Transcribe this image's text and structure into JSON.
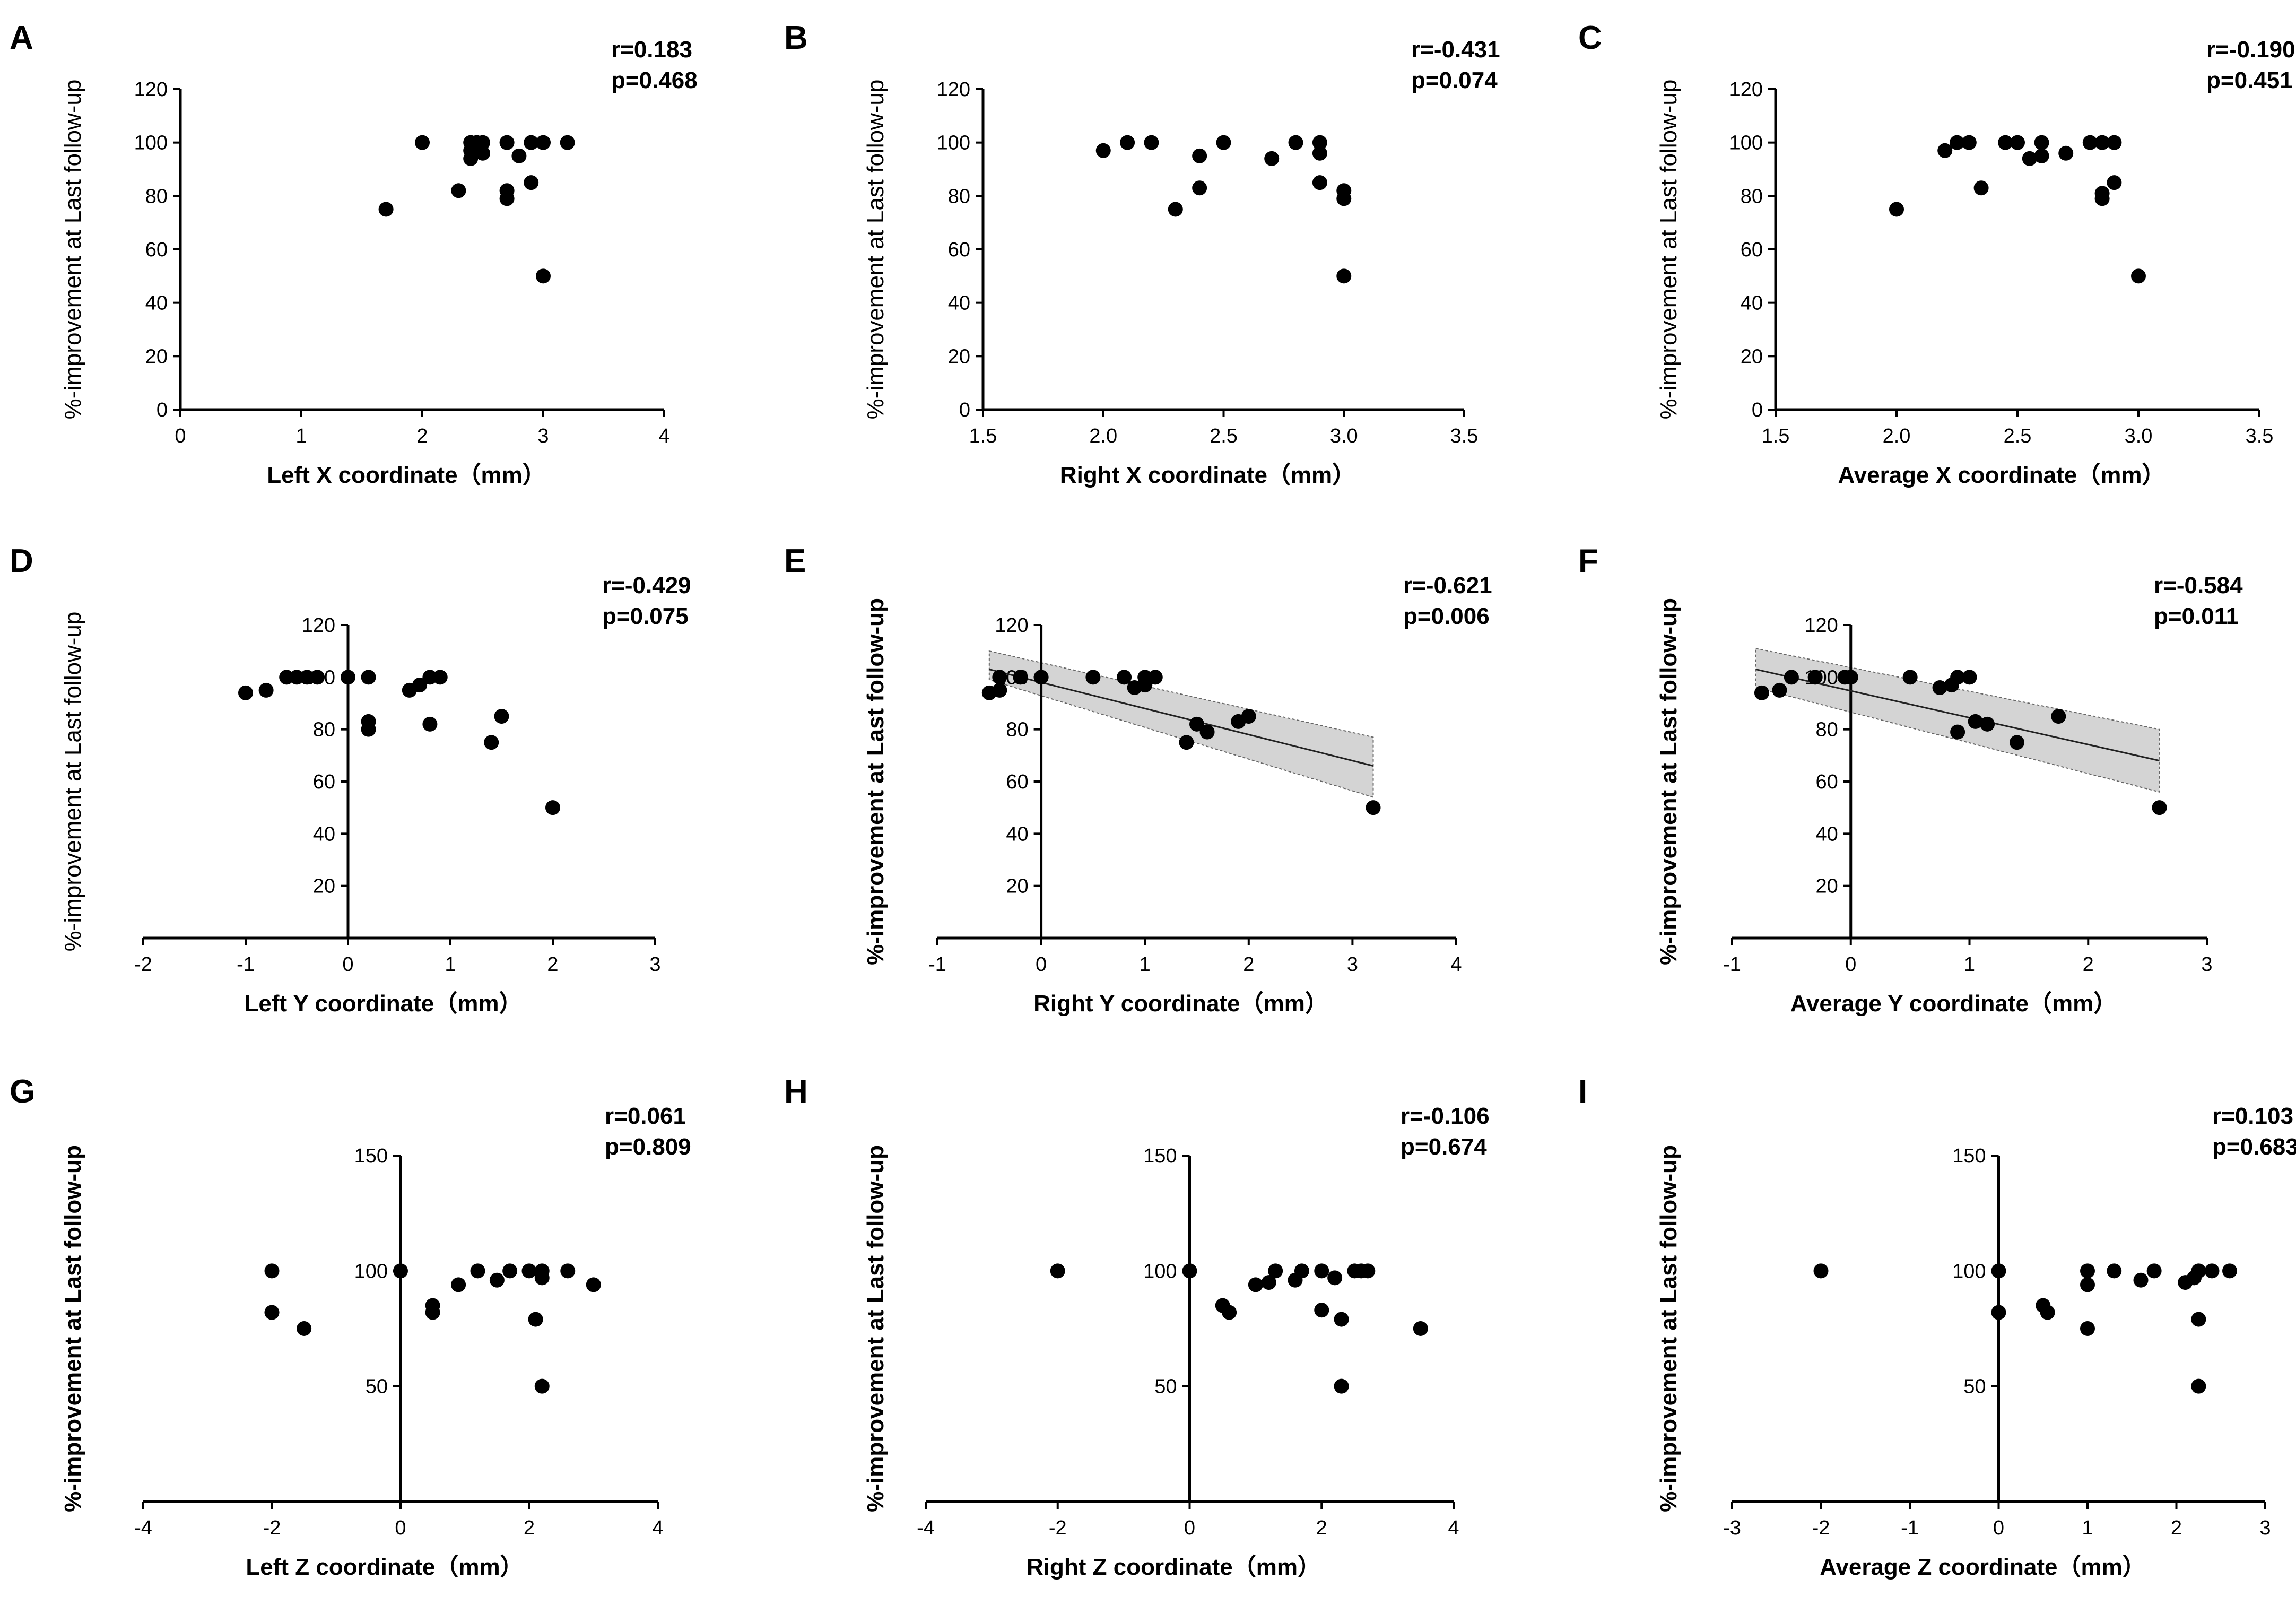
{
  "chart_data": [
    {
      "letter": "A",
      "type": "scatter",
      "xlabel": "Left X coordinate（mm）",
      "ylabel": "%-improvement at Last follow-up",
      "r": "r=0.183",
      "p": "p=0.468",
      "xlim": [
        0,
        4
      ],
      "ylim": [
        0,
        120
      ],
      "xticks": [
        "0",
        "1",
        "2",
        "3",
        "4"
      ],
      "yticks": [
        "0",
        "20",
        "40",
        "60",
        "80",
        "100",
        "120"
      ],
      "points": [
        [
          1.7,
          75
        ],
        [
          2.0,
          100
        ],
        [
          2.3,
          82
        ],
        [
          2.4,
          100
        ],
        [
          2.4,
          97
        ],
        [
          2.4,
          94
        ],
        [
          2.45,
          100
        ],
        [
          2.5,
          100
        ],
        [
          2.5,
          96
        ],
        [
          2.7,
          100
        ],
        [
          2.7,
          82
        ],
        [
          2.7,
          79
        ],
        [
          2.8,
          95
        ],
        [
          2.9,
          100
        ],
        [
          2.9,
          85
        ],
        [
          3.0,
          100
        ],
        [
          3.0,
          50
        ],
        [
          3.2,
          100
        ]
      ]
    },
    {
      "letter": "B",
      "type": "scatter",
      "xlabel": "Right X coordinate（mm）",
      "ylabel": "%-improvement at Last follow-up",
      "r": "r=-0.431",
      "p": "p=0.074",
      "xlim": [
        1.5,
        3.5
      ],
      "ylim": [
        0,
        120
      ],
      "xticks": [
        "1.5",
        "2.0",
        "2.5",
        "3.0",
        "3.5"
      ],
      "yticks": [
        "0",
        "20",
        "40",
        "60",
        "80",
        "100",
        "120"
      ],
      "points": [
        [
          2.0,
          97
        ],
        [
          2.1,
          100
        ],
        [
          2.2,
          100
        ],
        [
          2.3,
          75
        ],
        [
          2.4,
          95
        ],
        [
          2.4,
          83
        ],
        [
          2.5,
          100
        ],
        [
          2.7,
          94
        ],
        [
          2.8,
          100
        ],
        [
          2.9,
          100
        ],
        [
          2.9,
          96
        ],
        [
          2.9,
          85
        ],
        [
          3.0,
          82
        ],
        [
          3.0,
          79
        ],
        [
          3.0,
          50
        ]
      ]
    },
    {
      "letter": "C",
      "type": "scatter",
      "xlabel": "Average X coordinate（mm）",
      "ylabel": "%-improvement at Last follow-up",
      "r": "r=-0.190",
      "p": "p=0.451",
      "xlim": [
        1.5,
        3.5
      ],
      "ylim": [
        0,
        120
      ],
      "xticks": [
        "1.5",
        "2.0",
        "2.5",
        "3.0",
        "3.5"
      ],
      "yticks": [
        "0",
        "20",
        "40",
        "60",
        "80",
        "100",
        "120"
      ],
      "points": [
        [
          2.0,
          75
        ],
        [
          2.2,
          97
        ],
        [
          2.25,
          100
        ],
        [
          2.3,
          100
        ],
        [
          2.35,
          83
        ],
        [
          2.45,
          100
        ],
        [
          2.5,
          100
        ],
        [
          2.55,
          94
        ],
        [
          2.6,
          100
        ],
        [
          2.6,
          95
        ],
        [
          2.7,
          96
        ],
        [
          2.8,
          100
        ],
        [
          2.85,
          100
        ],
        [
          2.85,
          81
        ],
        [
          2.85,
          79
        ],
        [
          2.9,
          100
        ],
        [
          2.9,
          85
        ],
        [
          3.0,
          50
        ]
      ]
    },
    {
      "letter": "D",
      "type": "scatter",
      "xlabel": "Left Y coordinate（mm）",
      "ylabel": "%-improvement at Last follow-up",
      "r": "r=-0.429",
      "p": "p=0.075",
      "xlim": [
        -2,
        3
      ],
      "ylim": [
        0,
        120
      ],
      "xticks": [
        "-2",
        "-1",
        "0",
        "1",
        "2",
        "3"
      ],
      "yticks": [
        "20",
        "40",
        "60",
        "80",
        "100",
        "120"
      ],
      "crossAxis": true,
      "points": [
        [
          -1.0,
          94
        ],
        [
          -0.8,
          95
        ],
        [
          -0.6,
          100
        ],
        [
          -0.5,
          100
        ],
        [
          -0.4,
          100
        ],
        [
          -0.3,
          100
        ],
        [
          0,
          100
        ],
        [
          0.2,
          100
        ],
        [
          0.2,
          83
        ],
        [
          0.2,
          80
        ],
        [
          0.6,
          95
        ],
        [
          0.7,
          97
        ],
        [
          0.8,
          100
        ],
        [
          0.8,
          82
        ],
        [
          0.9,
          100
        ],
        [
          1.4,
          75
        ],
        [
          1.5,
          85
        ],
        [
          2.0,
          50
        ]
      ]
    },
    {
      "letter": "E",
      "type": "scatter",
      "xlabel": "Right Y coordinate（mm）",
      "ylabel": "%-improvement at Last follow-up",
      "r": "r=-0.621",
      "p": "p=0.006",
      "xlim": [
        -1,
        4
      ],
      "ylim": [
        0,
        120
      ],
      "xticks": [
        "-1",
        "0",
        "1",
        "2",
        "3",
        "4"
      ],
      "yticks": [
        "20",
        "40",
        "60",
        "80",
        "100",
        "120"
      ],
      "crossAxis": true,
      "bold": true,
      "fit": {
        "x0": -0.5,
        "y0": 103,
        "x1": 3.2,
        "y1": 66
      },
      "band": {
        "lo0": 99,
        "hi0": 110,
        "lo1": 54,
        "hi1": 77
      },
      "points": [
        [
          -0.5,
          94
        ],
        [
          -0.4,
          95
        ],
        [
          -0.4,
          100
        ],
        [
          -0.2,
          100
        ],
        [
          0,
          100
        ],
        [
          0.5,
          100
        ],
        [
          0.8,
          100
        ],
        [
          0.9,
          96
        ],
        [
          1.0,
          97
        ],
        [
          1.0,
          100
        ],
        [
          1.1,
          100
        ],
        [
          1.4,
          75
        ],
        [
          1.5,
          82
        ],
        [
          1.6,
          79
        ],
        [
          1.9,
          83
        ],
        [
          2.0,
          85
        ],
        [
          3.2,
          50
        ]
      ]
    },
    {
      "letter": "F",
      "type": "scatter",
      "xlabel": "Average Y coordinate（mm）",
      "ylabel": "%-improvement at Last follow-up",
      "r": "r=-0.584",
      "p": "p=0.011",
      "xlim": [
        -1,
        3
      ],
      "ylim": [
        0,
        120
      ],
      "xticks": [
        "-1",
        "0",
        "1",
        "2",
        "3"
      ],
      "yticks": [
        "20",
        "40",
        "60",
        "80",
        "100",
        "120"
      ],
      "crossAxis": true,
      "bold": true,
      "fit": {
        "x0": -0.8,
        "y0": 103,
        "x1": 2.6,
        "y1": 68
      },
      "band": {
        "lo0": 96,
        "hi0": 111,
        "lo1": 56,
        "hi1": 80
      },
      "points": [
        [
          -0.75,
          94
        ],
        [
          -0.6,
          95
        ],
        [
          -0.5,
          100
        ],
        [
          -0.3,
          100
        ],
        [
          -0.05,
          100
        ],
        [
          0,
          100
        ],
        [
          0.5,
          100
        ],
        [
          0.75,
          96
        ],
        [
          0.85,
          97
        ],
        [
          0.9,
          100
        ],
        [
          0.9,
          79
        ],
        [
          1.0,
          100
        ],
        [
          1.05,
          83
        ],
        [
          1.15,
          82
        ],
        [
          1.4,
          75
        ],
        [
          1.75,
          85
        ],
        [
          2.6,
          50
        ]
      ]
    },
    {
      "letter": "G",
      "type": "scatter",
      "xlabel": "Left Z coordinate（mm）",
      "ylabel": "%-improvement at Last follow-up",
      "r": "r=0.061",
      "p": "p=0.809",
      "xlim": [
        -4,
        4
      ],
      "ylim": [
        0,
        150
      ],
      "xticks": [
        "-4",
        "-2",
        "0",
        "2",
        "4"
      ],
      "yticks": [
        "50",
        "100",
        "150"
      ],
      "crossAxis": true,
      "bold": true,
      "points": [
        [
          -2.0,
          100
        ],
        [
          -2.0,
          82
        ],
        [
          -1.5,
          75
        ],
        [
          0,
          100
        ],
        [
          0.5,
          85
        ],
        [
          0.5,
          82
        ],
        [
          0.9,
          94
        ],
        [
          1.2,
          100
        ],
        [
          1.5,
          96
        ],
        [
          1.7,
          100
        ],
        [
          2.0,
          100
        ],
        [
          2.1,
          79
        ],
        [
          2.2,
          97
        ],
        [
          2.2,
          100
        ],
        [
          2.2,
          50
        ],
        [
          2.6,
          100
        ],
        [
          3.0,
          94
        ]
      ]
    },
    {
      "letter": "H",
      "type": "scatter",
      "xlabel": "Right Z coordinate（mm）",
      "ylabel": "%-improvement at Last follow-up",
      "r": "r=-0.106",
      "p": "p=0.674",
      "xlim": [
        -4,
        4
      ],
      "ylim": [
        0,
        150
      ],
      "xticks": [
        "-4",
        "-2",
        "0",
        "2",
        "4"
      ],
      "yticks": [
        "50",
        "100",
        "150"
      ],
      "crossAxis": true,
      "bold": true,
      "points": [
        [
          -2.0,
          100
        ],
        [
          0,
          100
        ],
        [
          0.5,
          85
        ],
        [
          0.6,
          82
        ],
        [
          1.0,
          94
        ],
        [
          1.2,
          95
        ],
        [
          1.3,
          100
        ],
        [
          1.6,
          96
        ],
        [
          1.7,
          100
        ],
        [
          2.0,
          100
        ],
        [
          2.0,
          83
        ],
        [
          2.2,
          97
        ],
        [
          2.3,
          79
        ],
        [
          2.3,
          50
        ],
        [
          2.5,
          100
        ],
        [
          2.6,
          100
        ],
        [
          2.7,
          100
        ],
        [
          3.5,
          75
        ]
      ]
    },
    {
      "letter": "I",
      "type": "scatter",
      "xlabel": "Average Z coordinate（mm）",
      "ylabel": "%-improvement at Last follow-up",
      "r": "r=0.103",
      "p": "p=0.683",
      "xlim": [
        -3,
        3
      ],
      "ylim": [
        0,
        150
      ],
      "xticks": [
        "-3",
        "-2",
        "-1",
        "0",
        "1",
        "2",
        "3"
      ],
      "yticks": [
        "50",
        "100",
        "150"
      ],
      "crossAxis": true,
      "bold": true,
      "points": [
        [
          -2.0,
          100
        ],
        [
          0,
          100
        ],
        [
          0,
          82
        ],
        [
          0.5,
          85
        ],
        [
          0.55,
          82
        ],
        [
          1.0,
          94
        ],
        [
          1.0,
          100
        ],
        [
          1.0,
          75
        ],
        [
          1.3,
          100
        ],
        [
          1.6,
          96
        ],
        [
          1.75,
          100
        ],
        [
          2.1,
          95
        ],
        [
          2.2,
          97
        ],
        [
          2.25,
          100
        ],
        [
          2.25,
          79
        ],
        [
          2.25,
          50
        ],
        [
          2.4,
          100
        ],
        [
          2.6,
          100
        ]
      ]
    }
  ]
}
